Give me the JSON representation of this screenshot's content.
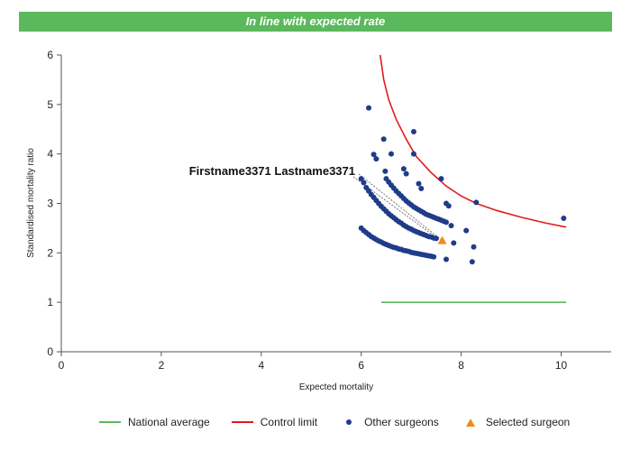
{
  "banner": {
    "text": "In line with expected rate",
    "color": "#5cb85c"
  },
  "callout": {
    "label": "Firstname3371 Lastname3371",
    "x": 7.62,
    "y": 2.25
  },
  "legend": {
    "national": "National average",
    "control": "Control limit",
    "others": "Other surgeons",
    "selected": "Selected surgeon"
  },
  "chart_data": {
    "type": "scatter",
    "xlabel": "Expected mortality",
    "ylabel": "Standardised mortality ratio",
    "xlim": [
      0,
      11
    ],
    "ylim": [
      0,
      6
    ],
    "xticks": [
      0,
      2,
      4,
      6,
      8,
      10
    ],
    "yticks": [
      0,
      1,
      2,
      3,
      4,
      5,
      6
    ],
    "grid": false,
    "legend_position": "bottom",
    "series": [
      {
        "name": "National average",
        "kind": "line",
        "color": "#5cb85c",
        "points": [
          [
            6.4,
            1.0
          ],
          [
            10.1,
            1.0
          ]
        ]
      },
      {
        "name": "Control limit",
        "kind": "line",
        "color": "#e41a1c",
        "points": [
          [
            6.38,
            6.0
          ],
          [
            6.45,
            5.5
          ],
          [
            6.55,
            5.1
          ],
          [
            6.7,
            4.7
          ],
          [
            6.9,
            4.3
          ],
          [
            7.1,
            3.95
          ],
          [
            7.4,
            3.62
          ],
          [
            7.7,
            3.35
          ],
          [
            8.0,
            3.15
          ],
          [
            8.3,
            3.0
          ],
          [
            8.7,
            2.86
          ],
          [
            9.2,
            2.72
          ],
          [
            9.7,
            2.6
          ],
          [
            10.1,
            2.52
          ]
        ]
      },
      {
        "name": "Other surgeons",
        "kind": "scatter",
        "color": "#1f3c88",
        "points": [
          [
            6.15,
            4.93
          ],
          [
            6.45,
            4.3
          ],
          [
            6.25,
            3.99
          ],
          [
            6.3,
            3.9
          ],
          [
            6.6,
            4.0
          ],
          [
            7.05,
            4.45
          ],
          [
            6.85,
            3.7
          ],
          [
            6.9,
            3.6
          ],
          [
            7.05,
            4.0
          ],
          [
            7.15,
            3.4
          ],
          [
            7.2,
            3.3
          ],
          [
            7.6,
            3.5
          ],
          [
            7.7,
            3.0
          ],
          [
            7.75,
            2.95
          ],
          [
            7.8,
            2.55
          ],
          [
            8.1,
            2.45
          ],
          [
            8.3,
            3.02
          ],
          [
            8.25,
            2.12
          ],
          [
            8.22,
            1.82
          ],
          [
            7.7,
            1.87
          ],
          [
            7.85,
            2.2
          ],
          [
            10.05,
            2.7
          ],
          [
            6.48,
            3.65
          ],
          [
            6.0,
            3.5
          ],
          [
            6.05,
            3.42
          ],
          [
            6.1,
            3.32
          ],
          [
            6.15,
            3.25
          ],
          [
            6.2,
            3.18
          ],
          [
            6.25,
            3.12
          ],
          [
            6.3,
            3.06
          ],
          [
            6.35,
            3.0
          ],
          [
            6.4,
            2.94
          ],
          [
            6.45,
            2.89
          ],
          [
            6.5,
            2.84
          ],
          [
            6.55,
            2.79
          ],
          [
            6.6,
            2.75
          ],
          [
            6.65,
            2.71
          ],
          [
            6.7,
            2.67
          ],
          [
            6.75,
            2.63
          ],
          [
            6.8,
            2.6
          ],
          [
            6.85,
            2.56
          ],
          [
            6.9,
            2.53
          ],
          [
            6.95,
            2.5
          ],
          [
            7.0,
            2.48
          ],
          [
            7.05,
            2.45
          ],
          [
            7.1,
            2.43
          ],
          [
            7.15,
            2.41
          ],
          [
            7.2,
            2.39
          ],
          [
            7.25,
            2.37
          ],
          [
            7.3,
            2.35
          ],
          [
            7.35,
            2.33
          ],
          [
            7.4,
            2.32
          ],
          [
            7.45,
            2.3
          ],
          [
            7.5,
            2.29
          ],
          [
            6.5,
            3.5
          ],
          [
            6.55,
            3.43
          ],
          [
            6.6,
            3.37
          ],
          [
            6.65,
            3.31
          ],
          [
            6.7,
            3.25
          ],
          [
            6.75,
            3.2
          ],
          [
            6.8,
            3.15
          ],
          [
            6.85,
            3.1
          ],
          [
            6.9,
            3.05
          ],
          [
            6.95,
            3.01
          ],
          [
            7.0,
            2.97
          ],
          [
            7.05,
            2.93
          ],
          [
            7.1,
            2.9
          ],
          [
            7.15,
            2.87
          ],
          [
            7.2,
            2.84
          ],
          [
            7.25,
            2.81
          ],
          [
            7.3,
            2.78
          ],
          [
            7.35,
            2.76
          ],
          [
            7.4,
            2.74
          ],
          [
            7.45,
            2.72
          ],
          [
            7.5,
            2.7
          ],
          [
            7.55,
            2.68
          ],
          [
            7.6,
            2.66
          ],
          [
            7.65,
            2.64
          ],
          [
            7.7,
            2.62
          ],
          [
            6.0,
            2.5
          ],
          [
            6.05,
            2.45
          ],
          [
            6.1,
            2.41
          ],
          [
            6.15,
            2.37
          ],
          [
            6.2,
            2.33
          ],
          [
            6.25,
            2.3
          ],
          [
            6.3,
            2.27
          ],
          [
            6.35,
            2.24
          ],
          [
            6.4,
            2.22
          ],
          [
            6.45,
            2.19
          ],
          [
            6.5,
            2.17
          ],
          [
            6.55,
            2.15
          ],
          [
            6.6,
            2.13
          ],
          [
            6.65,
            2.11
          ],
          [
            6.7,
            2.1
          ],
          [
            6.75,
            2.08
          ],
          [
            6.8,
            2.07
          ],
          [
            6.85,
            2.05
          ],
          [
            6.9,
            2.04
          ],
          [
            6.95,
            2.03
          ],
          [
            7.0,
            2.01
          ],
          [
            7.05,
            2.0
          ],
          [
            7.1,
            1.99
          ],
          [
            7.15,
            1.98
          ],
          [
            7.2,
            1.97
          ],
          [
            7.25,
            1.96
          ],
          [
            7.3,
            1.95
          ],
          [
            7.35,
            1.94
          ],
          [
            7.4,
            1.93
          ],
          [
            7.45,
            1.92
          ]
        ]
      },
      {
        "name": "Selected surgeon",
        "kind": "scatter",
        "marker": "triangle",
        "color": "#ef8a1f",
        "points": [
          [
            7.62,
            2.25
          ]
        ]
      }
    ]
  }
}
